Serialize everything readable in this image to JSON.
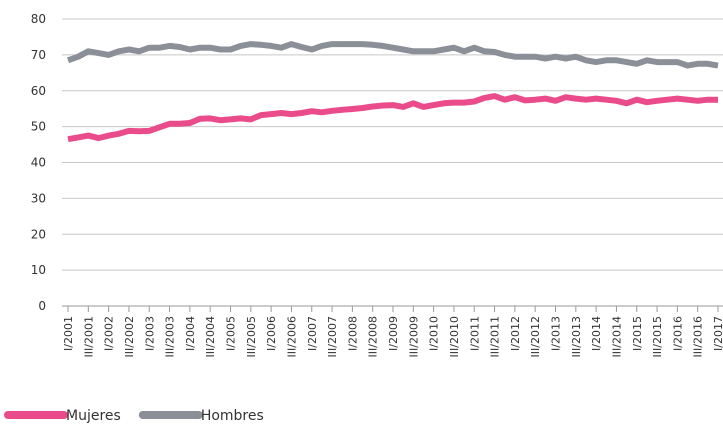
{
  "chart_data": {
    "type": "line",
    "categories": [
      "I/2001",
      null,
      "III/2001",
      null,
      "I/2002",
      null,
      "III/2002",
      null,
      "I/2003",
      null,
      "III/2003",
      null,
      "I/2004",
      null,
      "III/2004",
      null,
      "I/2005",
      null,
      "III/2005",
      null,
      "I/2006",
      null,
      "III/2006",
      null,
      "I/2007",
      null,
      "III/2007",
      null,
      "I/2008",
      null,
      "III/2008",
      null,
      "I/2009",
      null,
      "III/2009",
      null,
      "I/2010",
      null,
      "III/2010",
      null,
      "I/2011",
      null,
      "III/2011",
      null,
      "I/2012",
      null,
      "III/2012",
      null,
      "I/2013",
      null,
      "III/2013",
      null,
      "I/2014",
      null,
      "III/2014",
      null,
      "I/2015",
      null,
      "III/2015",
      null,
      "I/2016",
      null,
      "III/2016",
      null,
      "I/2017"
    ],
    "series": [
      {
        "name": "Mujeres",
        "color": "#ea4c8b",
        "values": [
          46.5,
          47,
          47.5,
          46.8,
          47.5,
          48,
          48.8,
          48.7,
          48.8,
          49.8,
          50.8,
          50.8,
          51,
          52.2,
          52.3,
          51.8,
          52,
          52.3,
          52,
          53.2,
          53.5,
          53.8,
          53.5,
          53.8,
          54.3,
          54,
          54.4,
          54.7,
          54.9,
          55.2,
          55.6,
          55.9,
          56,
          55.5,
          56.5,
          55.5,
          56,
          56.5,
          56.7,
          56.7,
          57,
          58,
          58.5,
          57.5,
          58.2,
          57.3,
          57.5,
          57.8,
          57.2,
          58.2,
          57.8,
          57.5,
          57.8,
          57.5,
          57.2,
          56.5,
          57.5,
          56.8,
          57.2,
          57.5,
          57.8,
          57.5,
          57.2,
          57.5,
          57.5
        ]
      },
      {
        "name": "Hombres",
        "color": "#8b9098",
        "values": [
          68.5,
          69.5,
          71,
          70.5,
          70,
          71,
          71.5,
          71,
          72,
          72,
          72.5,
          72.2,
          71.5,
          72,
          72,
          71.5,
          71.5,
          72.5,
          73,
          72.8,
          72.5,
          72,
          73,
          72.2,
          71.5,
          72.5,
          73,
          73,
          73,
          73,
          72.8,
          72.5,
          72,
          71.5,
          71,
          71,
          71,
          71.5,
          72,
          71,
          72,
          71,
          70.8,
          70,
          69.5,
          69.5,
          69.5,
          69,
          69.5,
          69,
          69.5,
          68.5,
          68,
          68.5,
          68.5,
          68,
          67.5,
          68.5,
          68,
          68,
          68,
          67,
          67.5,
          67.5,
          67
        ]
      }
    ],
    "ylim": [
      0,
      80
    ],
    "yticks": [
      0,
      10,
      20,
      30,
      40,
      50,
      60,
      70,
      80
    ],
    "grid": true
  }
}
